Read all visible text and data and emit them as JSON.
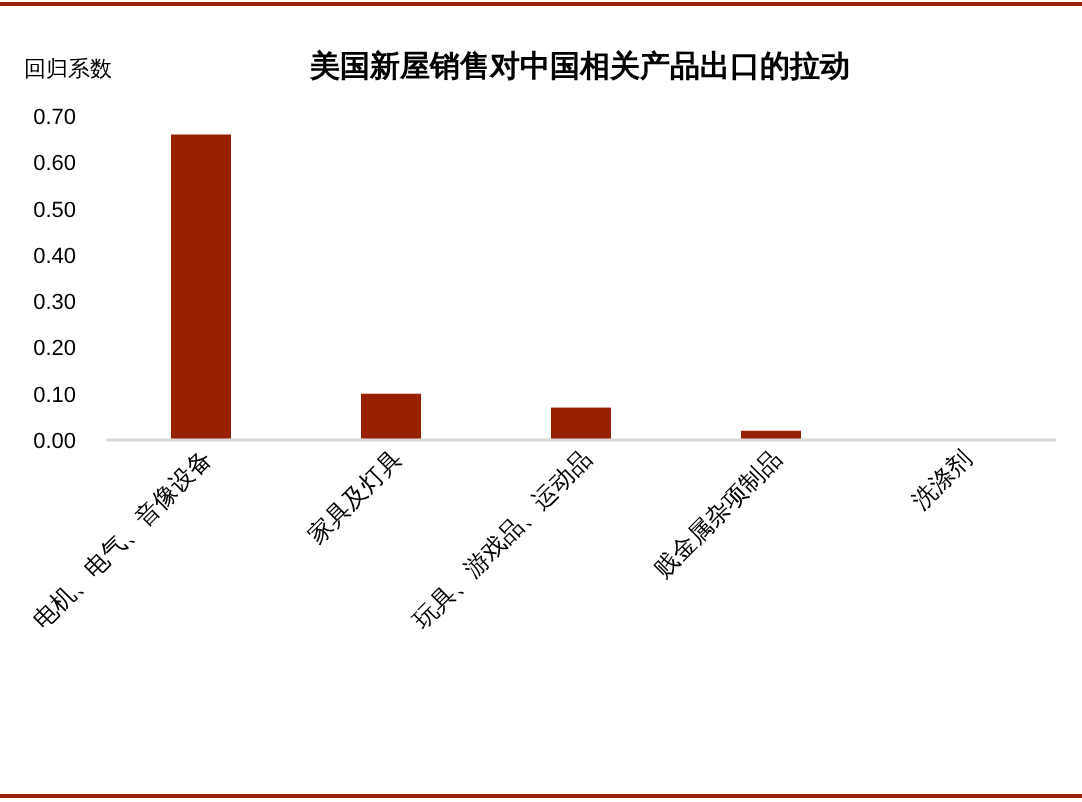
{
  "chart_data": {
    "type": "bar",
    "title": "美国新屋销售对中国相关产品出口的拉动",
    "ylabel": "回归系数",
    "categories": [
      "电机、电气、音像设备",
      "家具及灯具",
      "玩具、游戏品、运动品",
      "贱金属杂项制品",
      "洗涤剂"
    ],
    "values": [
      0.66,
      0.1,
      0.07,
      0.02,
      0
    ],
    "color": "#962000",
    "ylim": [
      0,
      0.7
    ],
    "yticks": [
      {
        "value": 0,
        "label": "0.00"
      },
      {
        "value": 0.1,
        "label": "0.10"
      },
      {
        "value": 0.2,
        "label": "0.20"
      },
      {
        "value": 0.3,
        "label": "0.30"
      },
      {
        "value": 0.4,
        "label": "0.40"
      },
      {
        "value": 0.5,
        "label": "0.50"
      },
      {
        "value": 0.6,
        "label": "0.60"
      },
      {
        "value": 0.7,
        "label": "0.70"
      }
    ],
    "grid": false
  }
}
